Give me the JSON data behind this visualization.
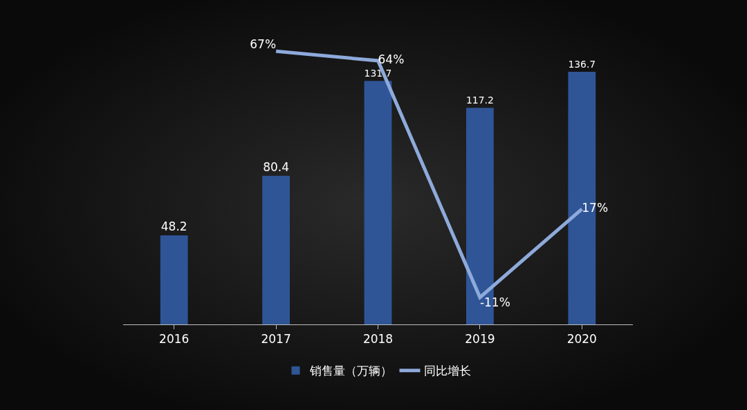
{
  "chart_data": {
    "type": "bar",
    "categories": [
      "2016",
      "2017",
      "2018",
      "2019",
      "2020"
    ],
    "series": [
      {
        "name": "销售量（万辆）",
        "color": "#2f5597",
        "values": [
          48.2,
          80.4,
          131.7,
          117.2,
          136.7
        ]
      },
      {
        "name": "同比增长",
        "type": "line",
        "axis": "y2",
        "color": "#8eaadb",
        "values": [
          null,
          67,
          64,
          -11,
          17
        ],
        "value_labels": [
          null,
          "67%",
          "64%",
          "-11%",
          "17%"
        ]
      }
    ],
    "data_labels": true,
    "legend": "bottom",
    "marker": "none",
    "line_style": "solid"
  }
}
